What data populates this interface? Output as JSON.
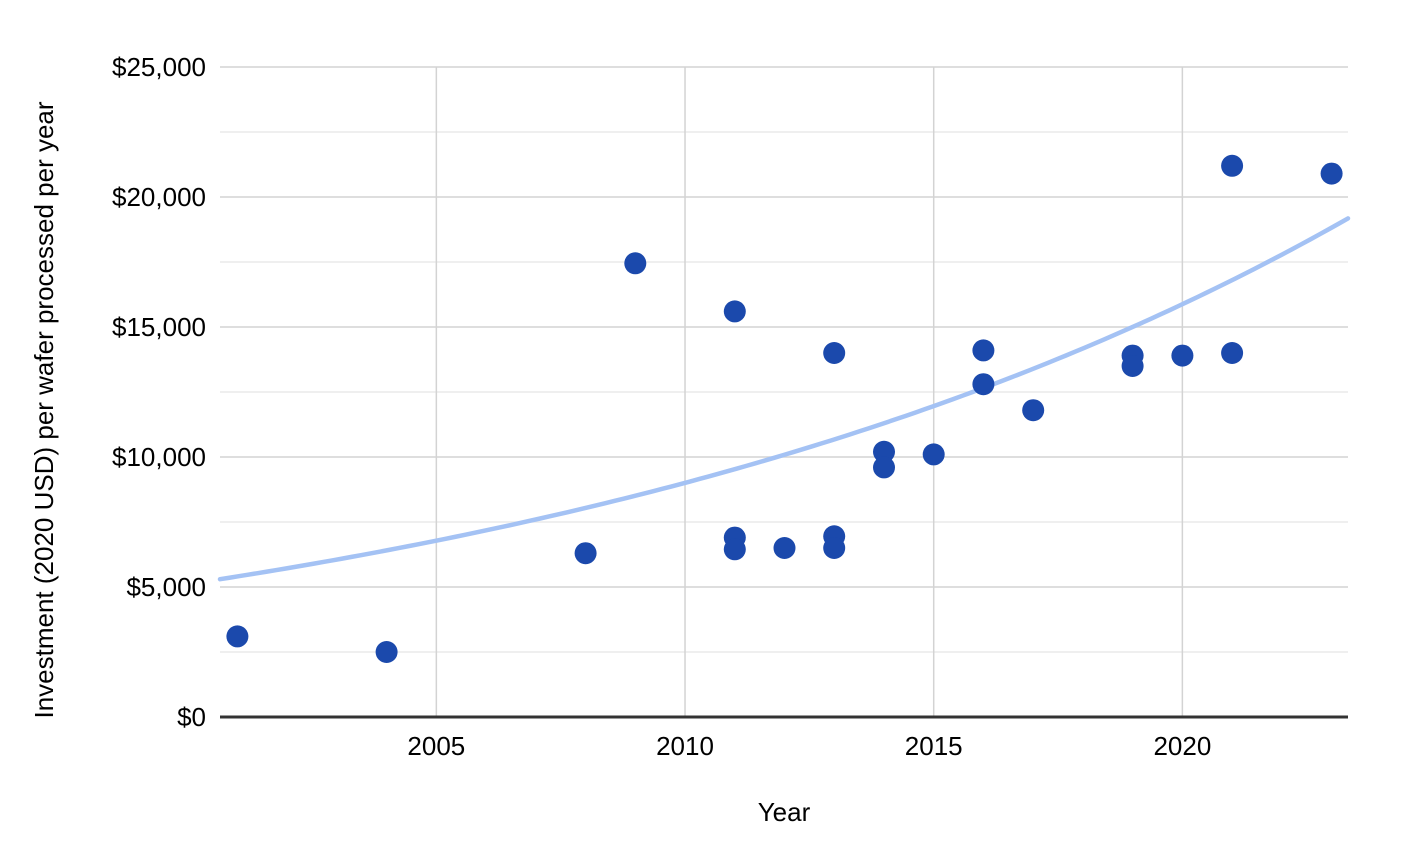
{
  "chart_data": {
    "type": "scatter",
    "title": "",
    "xlabel": "Year",
    "ylabel": "Investment (2020 USD) per wafer processed per year",
    "xlim": [
      2000.65,
      2023.33
    ],
    "ylim": [
      0,
      25000
    ],
    "grid": true,
    "legend_position": "none",
    "x_ticks": [
      {
        "v": 2005,
        "label": "2005"
      },
      {
        "v": 2010,
        "label": "2010"
      },
      {
        "v": 2015,
        "label": "2015"
      },
      {
        "v": 2020,
        "label": "2020"
      }
    ],
    "y_ticks": [
      {
        "v": 0,
        "label": "$0"
      },
      {
        "v": 5000,
        "label": "$5,000"
      },
      {
        "v": 10000,
        "label": "$10,000"
      },
      {
        "v": 15000,
        "label": "$15,000"
      },
      {
        "v": 20000,
        "label": "$20,000"
      },
      {
        "v": 25000,
        "label": "$25,000"
      }
    ],
    "y_minor_ticks": [
      2500,
      7500,
      12500,
      17500,
      22500
    ],
    "points": [
      {
        "x": 2001,
        "y": 3100
      },
      {
        "x": 2004,
        "y": 2500
      },
      {
        "x": 2008,
        "y": 6300
      },
      {
        "x": 2009,
        "y": 17450
      },
      {
        "x": 2011,
        "y": 15600
      },
      {
        "x": 2011,
        "y": 6900
      },
      {
        "x": 2011,
        "y": 6450
      },
      {
        "x": 2012,
        "y": 6500
      },
      {
        "x": 2013,
        "y": 14000
      },
      {
        "x": 2013,
        "y": 6950
      },
      {
        "x": 2013,
        "y": 6500
      },
      {
        "x": 2014,
        "y": 10200
      },
      {
        "x": 2014,
        "y": 9600
      },
      {
        "x": 2015,
        "y": 10100
      },
      {
        "x": 2016,
        "y": 14100
      },
      {
        "x": 2016,
        "y": 12800
      },
      {
        "x": 2017,
        "y": 11800
      },
      {
        "x": 2019,
        "y": 13900
      },
      {
        "x": 2019,
        "y": 13500
      },
      {
        "x": 2020,
        "y": 13900
      },
      {
        "x": 2021,
        "y": 14000
      },
      {
        "x": 2021,
        "y": 21200
      },
      {
        "x": 2023,
        "y": 20900
      }
    ],
    "trendline": {
      "type": "exponential",
      "base_year": 2000.65,
      "base_value": 5300,
      "growth_rate": 0.0567
    },
    "point_radius": 11,
    "colors": {
      "point": "#1b49ac",
      "trendline": "#a4c2f4",
      "grid_major": "#d3d3d3",
      "grid_minor": "#eaeaea",
      "axis": "#333333",
      "text": "#000000",
      "background": "#ffffff"
    }
  }
}
